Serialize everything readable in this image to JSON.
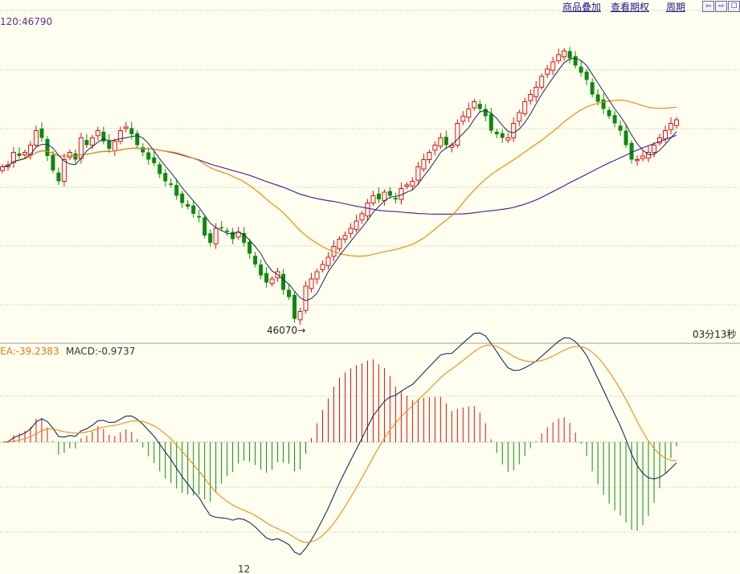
{
  "toolbar": {
    "items": [
      "商品叠加",
      "查看期权",
      "周期"
    ],
    "nav_icons": [
      "arrow-left-icon",
      "arrow-right-icon",
      "panel-icon"
    ]
  },
  "price_panel": {
    "ma_readout": "120:46790",
    "low_marker": "46070",
    "countdown": "03分13秒"
  },
  "macd_panel": {
    "dea_readout": "EA:-39.2383",
    "macd_readout": "MACD:-0.9737"
  },
  "x_axis": {
    "tick_label": "12"
  },
  "colors": {
    "background": "#fffff0",
    "up": "#e01010",
    "down": "#0a8a0a",
    "ma_short": "#1a2a5a",
    "ma_mid": "#f28a10",
    "ma_long": "#4a2a9a",
    "dif": "#1a2a5a",
    "dea": "#f28a10",
    "grid": "#b8b8b8"
  },
  "chart_data": [
    {
      "type": "candlestick",
      "title": "",
      "low_label": 46070,
      "series": [
        {
          "type": "candlestick",
          "close": [
            46500,
            46505,
            46540,
            46530,
            46540,
            46560,
            46600,
            46580,
            46530,
            46490,
            46460,
            46520,
            46540,
            46520,
            46580,
            46560,
            46580,
            46600,
            46570,
            46550,
            46570,
            46600,
            46610,
            46590,
            46560,
            46540,
            46520,
            46510,
            46480,
            46460,
            46450,
            46420,
            46400,
            46390,
            46370,
            46360,
            46310,
            46290,
            46330,
            46330,
            46320,
            46300,
            46320,
            46290,
            46260,
            46230,
            46200,
            46180,
            46190,
            46210,
            46160,
            46140,
            46080,
            46100,
            46170,
            46190,
            46210,
            46230,
            46250,
            46280,
            46300,
            46310,
            46330,
            46350,
            46370,
            46400,
            46420,
            46410,
            46430,
            46420,
            46410,
            46440,
            46450,
            46460,
            46500,
            46520,
            46540,
            46560,
            46580,
            46560,
            46560,
            46620,
            46640,
            46660,
            46680,
            46660,
            46640,
            46600,
            46590,
            46580,
            46580,
            46620,
            46650,
            46680,
            46700,
            46720,
            46750,
            46770,
            46790,
            46810,
            46820,
            46800,
            46780,
            46760,
            46740,
            46700,
            46680,
            46660,
            46640,
            46620,
            46600,
            46560,
            46520,
            46520,
            46530,
            46540,
            46560,
            46580,
            46600,
            46620,
            46630
          ]
        },
        {
          "name": "MA short",
          "type": "line"
        },
        {
          "name": "MA mid",
          "type": "line"
        },
        {
          "name": "MA 120",
          "type": "line",
          "last_value": 46790
        }
      ]
    },
    {
      "type": "bar",
      "title": "",
      "series": [
        {
          "name": "MACD",
          "type": "bar",
          "last_value": -0.9737
        },
        {
          "name": "DIF",
          "type": "line"
        },
        {
          "name": "DEA",
          "type": "line",
          "last_value": -39.2383
        }
      ]
    }
  ]
}
